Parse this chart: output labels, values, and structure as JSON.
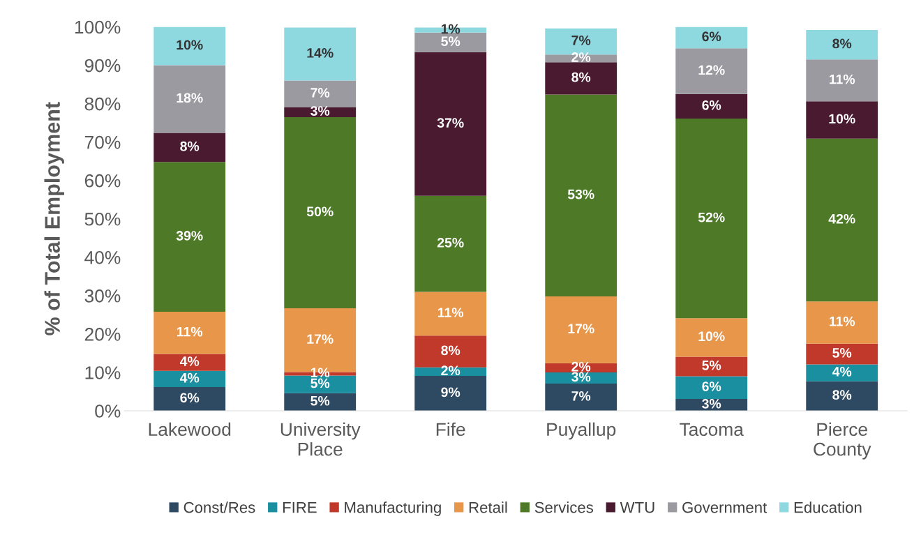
{
  "chart_data": {
    "type": "bar",
    "stacked": true,
    "ylabel": "% of Total Employment",
    "categories": [
      "Lakewood",
      "University\nPlace",
      "Fife",
      "Puyallup",
      "Tacoma",
      "Pierce\nCounty"
    ],
    "ylim": [
      0,
      100
    ],
    "yticks": [
      {
        "value": 0,
        "label": "0%"
      },
      {
        "value": 10,
        "label": "10%"
      },
      {
        "value": 20,
        "label": "20%"
      },
      {
        "value": 30,
        "label": "30%"
      },
      {
        "value": 40,
        "label": "40%"
      },
      {
        "value": 50,
        "label": "50%"
      },
      {
        "value": 60,
        "label": "60%"
      },
      {
        "value": 70,
        "label": "70%"
      },
      {
        "value": 80,
        "label": "80%"
      },
      {
        "value": 90,
        "label": "90%"
      },
      {
        "value": 100,
        "label": "100%"
      }
    ],
    "grid": false,
    "legend": "bottom",
    "series": [
      {
        "name": "Const/Res",
        "color": "#2e4a62",
        "values": [
          6.2,
          4.6,
          9.1,
          7.1,
          3.1,
          7.7
        ],
        "value_labels": [
          "6%",
          "5%",
          "9%",
          "7%",
          "3%",
          "8%"
        ]
      },
      {
        "name": "FIRE",
        "color": "#1a8fa0",
        "values": [
          4.2,
          4.6,
          2.2,
          2.9,
          5.9,
          4.4
        ],
        "value_labels": [
          "4%",
          "5%",
          "2%",
          "3%",
          "6%",
          "4%"
        ]
      },
      {
        "name": "Manufacturing",
        "color": "#c0392b",
        "values": [
          4.4,
          0.9,
          8.3,
          2.4,
          5.1,
          5.4
        ],
        "value_labels": [
          "4%",
          "1%",
          "8%",
          "2%",
          "5%",
          "5%"
        ]
      },
      {
        "name": "Retail",
        "color": "#e8964a",
        "values": [
          11,
          16.6,
          11.4,
          17.4,
          10,
          11
        ],
        "value_labels": [
          "11%",
          "17%",
          "11%",
          "17%",
          "10%",
          "11%"
        ]
      },
      {
        "name": "Services",
        "color": "#4e7a28",
        "values": [
          39,
          49.8,
          25,
          52.6,
          52,
          42.4
        ],
        "value_labels": [
          "39%",
          "50%",
          "25%",
          "53%",
          "52%",
          "42%"
        ]
      },
      {
        "name": "WTU",
        "color": "#4a1a30",
        "values": [
          7.6,
          2.6,
          37.4,
          8.4,
          6.4,
          9.7
        ],
        "value_labels": [
          "8%",
          "3%",
          "37%",
          "8%",
          "6%",
          "10%"
        ]
      },
      {
        "name": "Government",
        "color": "#9a9aa0",
        "values": [
          17.6,
          6.9,
          5.1,
          2,
          11.9,
          10.9
        ],
        "value_labels": [
          "18%",
          "7%",
          "5%",
          "2%",
          "12%",
          "11%"
        ]
      },
      {
        "name": "Education",
        "color": "#8ed8e0",
        "values": [
          10,
          13.8,
          1.3,
          6.8,
          5.6,
          7.7
        ],
        "value_labels": [
          "10%",
          "14%",
          "1%",
          "7%",
          "6%",
          "8%"
        ]
      }
    ]
  }
}
